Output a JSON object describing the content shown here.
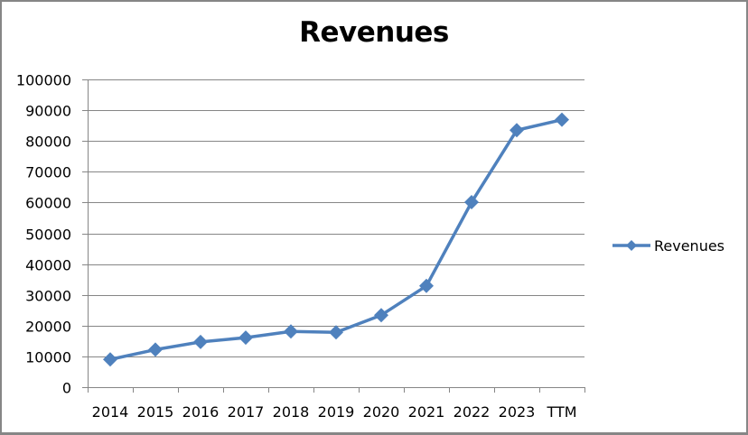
{
  "chart_data": {
    "type": "line",
    "title": "Revenues",
    "xlabel": "",
    "ylabel": "",
    "categories": [
      "2014",
      "2015",
      "2016",
      "2017",
      "2018",
      "2019",
      "2020",
      "2021",
      "2022",
      "2023",
      "TTM"
    ],
    "series": [
      {
        "name": "Revenues",
        "color": "#4F81BD",
        "marker": "diamond",
        "values": [
          9000,
          12200,
          14700,
          16100,
          18100,
          17800,
          23400,
          32900,
          60100,
          83500,
          86900
        ]
      }
    ],
    "ylim": [
      0,
      100000
    ],
    "yticks": [
      "0",
      "10000",
      "20000",
      "30000",
      "40000",
      "50000",
      "60000",
      "70000",
      "80000",
      "90000",
      "100000"
    ],
    "grid": true,
    "legend_position": "right"
  },
  "legend": {
    "label": "Revenues"
  }
}
